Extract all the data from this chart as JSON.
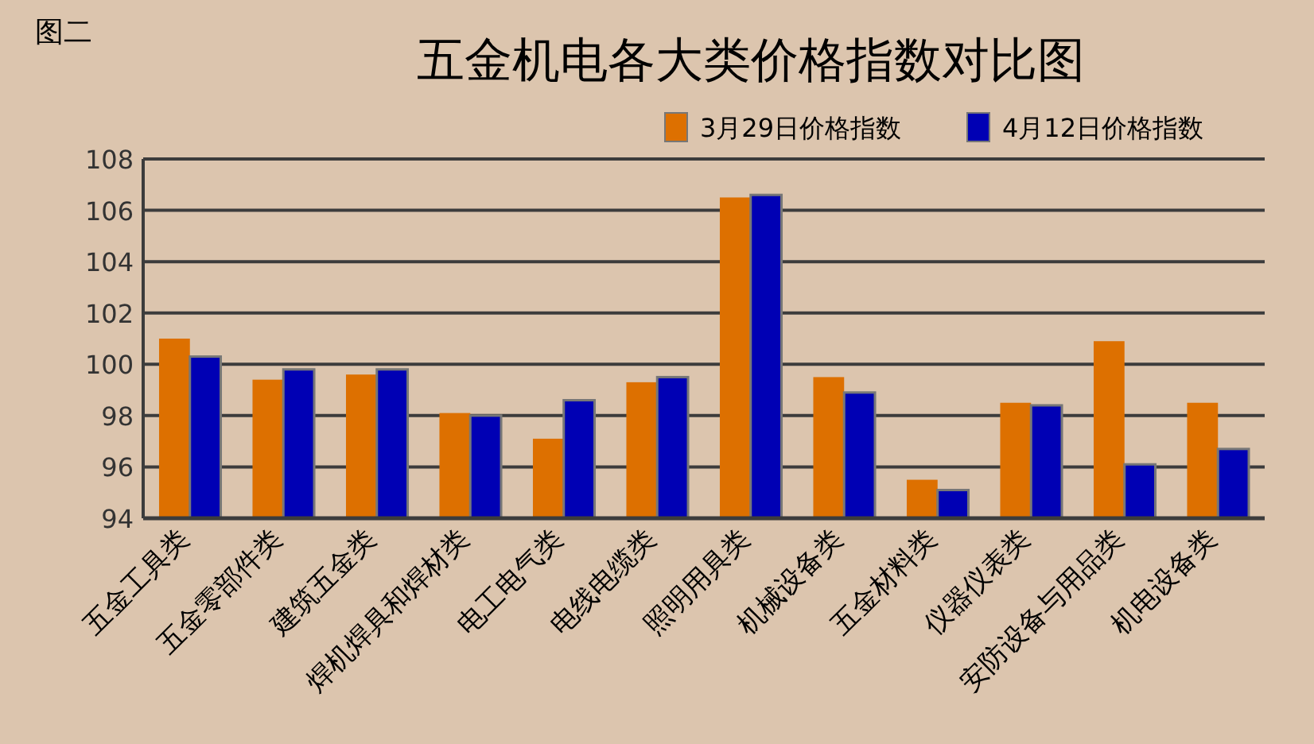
{
  "chart_data": {
    "type": "bar",
    "title": "五金机电各大类价格指数对比图",
    "annotations": [
      "图二"
    ],
    "categories": [
      "五金工具类",
      "五金零部件类",
      "建筑五金类",
      "焊机焊具和焊材类",
      "电工电气类",
      "电线电缆类",
      "照明用具类",
      "机械设备类",
      "五金材料类",
      "仪器仪表类",
      "安防设备与用品类",
      "机电设备类"
    ],
    "series": [
      {
        "name": "3月29日价格指数",
        "color": "#dd7000",
        "values": [
          101.0,
          99.4,
          99.6,
          98.1,
          97.1,
          99.3,
          106.5,
          99.5,
          95.5,
          98.5,
          100.9,
          98.5
        ]
      },
      {
        "name": "4月12日价格指数",
        "color": "#0000b4",
        "values": [
          100.3,
          99.8,
          99.8,
          98.0,
          98.6,
          99.5,
          106.6,
          98.9,
          95.1,
          98.4,
          96.1,
          96.7
        ]
      }
    ],
    "ylim": [
      94,
      108
    ],
    "yticks": [
      94,
      96,
      98,
      100,
      102,
      104,
      106,
      108
    ],
    "grid": "y",
    "legend": "top right"
  }
}
